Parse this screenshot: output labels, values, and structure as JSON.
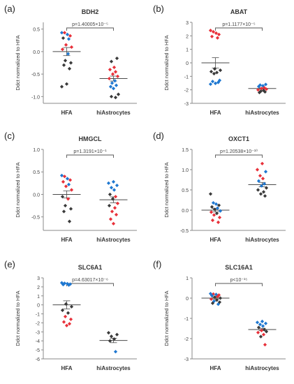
{
  "colors": {
    "red": "#e8313a",
    "blue": "#1f78d1",
    "black": "#3a3a3a",
    "axis": "#8a8a8a",
    "mean_line": "#4a4a4a"
  },
  "chart_data": [
    {
      "type": "scatter",
      "panel_label": "(a)",
      "title": "BDH2",
      "ylabel": "Ddct normalized to HFA",
      "categories": [
        "HFA",
        "hiAstrocytes"
      ],
      "ylim": [
        -1.15,
        0.65
      ],
      "yticks": [
        -1.0,
        -0.5,
        0.0,
        0.5
      ],
      "ytick_labels": [
        "-1.0",
        "-0.5",
        "0.0",
        "0.5"
      ],
      "pvalue": "p=1.40005×10⁻⁵",
      "means": [
        0.0,
        -0.6
      ],
      "sems": [
        0.09,
        0.055
      ],
      "points": [
        {
          "group": 0,
          "color": "blue",
          "y": 0.42
        },
        {
          "group": 0,
          "color": "red",
          "y": 0.42
        },
        {
          "group": 0,
          "color": "blue",
          "y": 0.38
        },
        {
          "group": 0,
          "color": "red",
          "y": 0.35
        },
        {
          "group": 0,
          "color": "black",
          "y": 0.3
        },
        {
          "group": 0,
          "color": "blue",
          "y": 0.28
        },
        {
          "group": 0,
          "color": "red",
          "y": 0.15
        },
        {
          "group": 0,
          "color": "red",
          "y": 0.1
        },
        {
          "group": 0,
          "color": "red",
          "y": 0.05
        },
        {
          "group": 0,
          "color": "blue",
          "y": -0.05
        },
        {
          "group": 0,
          "color": "black",
          "y": -0.2
        },
        {
          "group": 0,
          "color": "black",
          "y": -0.25
        },
        {
          "group": 0,
          "color": "black",
          "y": -0.3
        },
        {
          "group": 0,
          "color": "black",
          "y": -0.38
        },
        {
          "group": 0,
          "color": "black",
          "y": -0.72
        },
        {
          "group": 0,
          "color": "black",
          "y": -0.78
        },
        {
          "group": 1,
          "color": "black",
          "y": -0.15
        },
        {
          "group": 1,
          "color": "black",
          "y": -0.22
        },
        {
          "group": 1,
          "color": "red",
          "y": -0.35
        },
        {
          "group": 1,
          "color": "red",
          "y": -0.4
        },
        {
          "group": 1,
          "color": "red",
          "y": -0.45
        },
        {
          "group": 1,
          "color": "red",
          "y": -0.5
        },
        {
          "group": 1,
          "color": "red",
          "y": -0.55
        },
        {
          "group": 1,
          "color": "red",
          "y": -0.6
        },
        {
          "group": 1,
          "color": "blue",
          "y": -0.65
        },
        {
          "group": 1,
          "color": "blue",
          "y": -0.7
        },
        {
          "group": 1,
          "color": "blue",
          "y": -0.75
        },
        {
          "group": 1,
          "color": "blue",
          "y": -0.78
        },
        {
          "group": 1,
          "color": "blue",
          "y": -0.82
        },
        {
          "group": 1,
          "color": "black",
          "y": -0.95
        },
        {
          "group": 1,
          "color": "black",
          "y": -1.0
        },
        {
          "group": 1,
          "color": "black",
          "y": -1.02
        }
      ]
    },
    {
      "type": "scatter",
      "panel_label": "(b)",
      "title": "ABAT",
      "ylabel": "Ddct normalized to HFA",
      "categories": [
        "HFA",
        "hiAstrocytes"
      ],
      "ylim": [
        -3,
        3
      ],
      "yticks": [
        -3,
        -2,
        -1,
        0,
        1,
        2,
        3
      ],
      "ytick_labels": [
        "-3",
        "-2",
        "-1",
        "0",
        "1",
        "2",
        "3"
      ],
      "pvalue": "p=1.1177×10⁻⁵",
      "means": [
        0.0,
        -1.9
      ],
      "sems": [
        0.38,
        0.05
      ],
      "points": [
        {
          "group": 0,
          "color": "red",
          "y": 2.4
        },
        {
          "group": 0,
          "color": "red",
          "y": 2.3
        },
        {
          "group": 0,
          "color": "red",
          "y": 2.2
        },
        {
          "group": 0,
          "color": "red",
          "y": 2.1
        },
        {
          "group": 0,
          "color": "red",
          "y": 1.95
        },
        {
          "group": 0,
          "color": "red",
          "y": 1.85
        },
        {
          "group": 0,
          "color": "black",
          "y": -0.45
        },
        {
          "group": 0,
          "color": "black",
          "y": -0.55
        },
        {
          "group": 0,
          "color": "black",
          "y": -0.65
        },
        {
          "group": 0,
          "color": "black",
          "y": -0.72
        },
        {
          "group": 0,
          "color": "black",
          "y": -0.8
        },
        {
          "group": 0,
          "color": "blue",
          "y": -1.3
        },
        {
          "group": 0,
          "color": "blue",
          "y": -1.38
        },
        {
          "group": 0,
          "color": "blue",
          "y": -1.45
        },
        {
          "group": 0,
          "color": "blue",
          "y": -1.52
        },
        {
          "group": 0,
          "color": "blue",
          "y": -1.58
        },
        {
          "group": 1,
          "color": "blue",
          "y": -1.6
        },
        {
          "group": 1,
          "color": "blue",
          "y": -1.65
        },
        {
          "group": 1,
          "color": "blue",
          "y": -1.7
        },
        {
          "group": 1,
          "color": "blue",
          "y": -1.75
        },
        {
          "group": 1,
          "color": "red",
          "y": -1.85
        },
        {
          "group": 1,
          "color": "red",
          "y": -1.9
        },
        {
          "group": 1,
          "color": "red",
          "y": -1.95
        },
        {
          "group": 1,
          "color": "red",
          "y": -2.0
        },
        {
          "group": 1,
          "color": "black",
          "y": -2.05
        },
        {
          "group": 1,
          "color": "black",
          "y": -2.1
        },
        {
          "group": 1,
          "color": "black",
          "y": -2.15
        },
        {
          "group": 1,
          "color": "black",
          "y": -2.2
        }
      ]
    },
    {
      "type": "scatter",
      "panel_label": "(c)",
      "title": "HMGCL",
      "ylabel": "Ddct normalized to HFA",
      "categories": [
        "HFA",
        "hiAstrocytes"
      ],
      "ylim": [
        -0.8,
        1.0
      ],
      "yticks": [
        -0.5,
        0.0,
        0.5,
        1.0
      ],
      "ytick_labels": [
        "-0.5",
        "0.0",
        "0.5",
        "1.0"
      ],
      "pvalue": "p=1.3191×10⁻¹",
      "means": [
        0.0,
        -0.12
      ],
      "sems": [
        0.08,
        0.065
      ],
      "points": [
        {
          "group": 0,
          "color": "blue",
          "y": 0.42
        },
        {
          "group": 0,
          "color": "red",
          "y": 0.4
        },
        {
          "group": 0,
          "color": "blue",
          "y": 0.35
        },
        {
          "group": 0,
          "color": "red",
          "y": 0.32
        },
        {
          "group": 0,
          "color": "red",
          "y": 0.28
        },
        {
          "group": 0,
          "color": "blue",
          "y": 0.22
        },
        {
          "group": 0,
          "color": "red",
          "y": 0.18
        },
        {
          "group": 0,
          "color": "red",
          "y": 0.1
        },
        {
          "group": 0,
          "color": "black",
          "y": -0.05
        },
        {
          "group": 0,
          "color": "red",
          "y": -0.1
        },
        {
          "group": 0,
          "color": "black",
          "y": -0.25
        },
        {
          "group": 0,
          "color": "black",
          "y": -0.32
        },
        {
          "group": 0,
          "color": "black",
          "y": -0.38
        },
        {
          "group": 0,
          "color": "black",
          "y": -0.6
        },
        {
          "group": 1,
          "color": "blue",
          "y": 0.28
        },
        {
          "group": 1,
          "color": "blue",
          "y": 0.25
        },
        {
          "group": 1,
          "color": "blue",
          "y": 0.2
        },
        {
          "group": 1,
          "color": "blue",
          "y": 0.15
        },
        {
          "group": 1,
          "color": "blue",
          "y": 0.1
        },
        {
          "group": 1,
          "color": "black",
          "y": 0.0
        },
        {
          "group": 1,
          "color": "red",
          "y": -0.05
        },
        {
          "group": 1,
          "color": "black",
          "y": -0.1
        },
        {
          "group": 1,
          "color": "red",
          "y": -0.2
        },
        {
          "group": 1,
          "color": "black",
          "y": -0.25
        },
        {
          "group": 1,
          "color": "red",
          "y": -0.3
        },
        {
          "group": 1,
          "color": "red",
          "y": -0.38
        },
        {
          "group": 1,
          "color": "red",
          "y": -0.45
        },
        {
          "group": 1,
          "color": "red",
          "y": -0.55
        },
        {
          "group": 1,
          "color": "red",
          "y": -0.65
        }
      ]
    },
    {
      "type": "scatter",
      "panel_label": "(d)",
      "title": "OXCT1",
      "ylabel": "Ddct normalized to HFA",
      "categories": [
        "HFA",
        "hiAstrocytes"
      ],
      "ylim": [
        -0.5,
        1.5
      ],
      "yticks": [
        -0.5,
        0.0,
        0.5,
        1.0,
        1.5
      ],
      "ytick_labels": [
        "-0.5",
        "0.0",
        "0.5",
        "1.0",
        "1.5"
      ],
      "pvalue": "p=1.20538×10⁻¹⁰",
      "means": [
        0.0,
        0.63
      ],
      "sems": [
        0.045,
        0.055
      ],
      "points": [
        {
          "group": 0,
          "color": "black",
          "y": 0.4
        },
        {
          "group": 0,
          "color": "blue",
          "y": 0.18
        },
        {
          "group": 0,
          "color": "blue",
          "y": 0.15
        },
        {
          "group": 0,
          "color": "black",
          "y": 0.12
        },
        {
          "group": 0,
          "color": "black",
          "y": 0.08
        },
        {
          "group": 0,
          "color": "blue",
          "y": 0.05
        },
        {
          "group": 0,
          "color": "black",
          "y": 0.02
        },
        {
          "group": 0,
          "color": "blue",
          "y": -0.02
        },
        {
          "group": 0,
          "color": "red",
          "y": -0.05
        },
        {
          "group": 0,
          "color": "black",
          "y": -0.08
        },
        {
          "group": 0,
          "color": "red",
          "y": -0.12
        },
        {
          "group": 0,
          "color": "red",
          "y": -0.18
        },
        {
          "group": 0,
          "color": "red",
          "y": -0.25
        },
        {
          "group": 0,
          "color": "red",
          "y": -0.3
        },
        {
          "group": 1,
          "color": "red",
          "y": 1.15
        },
        {
          "group": 1,
          "color": "red",
          "y": 1.0
        },
        {
          "group": 1,
          "color": "blue",
          "y": 0.95
        },
        {
          "group": 1,
          "color": "red",
          "y": 0.85
        },
        {
          "group": 1,
          "color": "red",
          "y": 0.78
        },
        {
          "group": 1,
          "color": "blue",
          "y": 0.72
        },
        {
          "group": 1,
          "color": "blue",
          "y": 0.65
        },
        {
          "group": 1,
          "color": "blue",
          "y": 0.6
        },
        {
          "group": 1,
          "color": "black",
          "y": 0.55
        },
        {
          "group": 1,
          "color": "black",
          "y": 0.5
        },
        {
          "group": 1,
          "color": "black",
          "y": 0.45
        },
        {
          "group": 1,
          "color": "black",
          "y": 0.4
        },
        {
          "group": 1,
          "color": "black",
          "y": 0.35
        }
      ]
    },
    {
      "type": "scatter",
      "panel_label": "(e)",
      "title": "SLC6A1",
      "ylabel": "Ddct normalized to HFA",
      "categories": [
        "HFA",
        "hiAstrocytes"
      ],
      "ylim": [
        -6,
        3
      ],
      "yticks": [
        -6,
        -5,
        -4,
        -3,
        -2,
        -1,
        0,
        1,
        2,
        3
      ],
      "ytick_labels": [
        "-6",
        "-5",
        "-4",
        "-3",
        "-2",
        "-1",
        "0",
        "1",
        "2",
        "3"
      ],
      "pvalue": "p=4.63017×10⁻⁶",
      "means": [
        0.0,
        -3.95
      ],
      "sems": [
        0.45,
        0.25
      ],
      "points": [
        {
          "group": 0,
          "color": "blue",
          "y": 2.45
        },
        {
          "group": 0,
          "color": "blue",
          "y": 2.4
        },
        {
          "group": 0,
          "color": "blue",
          "y": 2.35
        },
        {
          "group": 0,
          "color": "blue",
          "y": 2.3
        },
        {
          "group": 0,
          "color": "blue",
          "y": 2.25
        },
        {
          "group": 0,
          "color": "blue",
          "y": 2.2
        },
        {
          "group": 0,
          "color": "black",
          "y": 0.1
        },
        {
          "group": 0,
          "color": "black",
          "y": -0.2
        },
        {
          "group": 0,
          "color": "black",
          "y": -0.6
        },
        {
          "group": 0,
          "color": "black",
          "y": -0.9
        },
        {
          "group": 0,
          "color": "red",
          "y": -1.3
        },
        {
          "group": 0,
          "color": "red",
          "y": -1.6
        },
        {
          "group": 0,
          "color": "red",
          "y": -1.9
        },
        {
          "group": 0,
          "color": "red",
          "y": -2.1
        },
        {
          "group": 0,
          "color": "red",
          "y": -2.3
        },
        {
          "group": 1,
          "color": "black",
          "y": -3.1
        },
        {
          "group": 1,
          "color": "black",
          "y": -3.3
        },
        {
          "group": 1,
          "color": "black",
          "y": -3.5
        },
        {
          "group": 1,
          "color": "black",
          "y": -3.8
        },
        {
          "group": 1,
          "color": "black",
          "y": -4.0
        },
        {
          "group": 1,
          "color": "blue",
          "y": -5.2
        }
      ]
    },
    {
      "type": "scatter",
      "panel_label": "(f)",
      "title": "SLC16A1",
      "ylabel": "Ddct normalized to HFA",
      "categories": [
        "HFA",
        "hiAstrocytes"
      ],
      "ylim": [
        -3,
        1
      ],
      "yticks": [
        -3,
        -2,
        -1,
        0,
        1
      ],
      "ytick_labels": [
        "-3",
        "-2",
        "-1",
        "0",
        "1"
      ],
      "pvalue": "p<10⁻¹⁵",
      "means": [
        0.0,
        -1.55
      ],
      "sems": [
        0.045,
        0.06
      ],
      "points": [
        {
          "group": 0,
          "color": "blue",
          "y": 0.22
        },
        {
          "group": 0,
          "color": "red",
          "y": 0.2
        },
        {
          "group": 0,
          "color": "blue",
          "y": 0.18
        },
        {
          "group": 0,
          "color": "red",
          "y": 0.15
        },
        {
          "group": 0,
          "color": "blue",
          "y": 0.12
        },
        {
          "group": 0,
          "color": "red",
          "y": 0.08
        },
        {
          "group": 0,
          "color": "black",
          "y": 0.05
        },
        {
          "group": 0,
          "color": "black",
          "y": 0.0
        },
        {
          "group": 0,
          "color": "red",
          "y": -0.05
        },
        {
          "group": 0,
          "color": "black",
          "y": -0.1
        },
        {
          "group": 0,
          "color": "blue",
          "y": -0.15
        },
        {
          "group": 0,
          "color": "black",
          "y": -0.2
        },
        {
          "group": 0,
          "color": "black",
          "y": -0.25
        },
        {
          "group": 0,
          "color": "blue",
          "y": -0.3
        },
        {
          "group": 1,
          "color": "blue",
          "y": -1.15
        },
        {
          "group": 1,
          "color": "blue",
          "y": -1.2
        },
        {
          "group": 1,
          "color": "blue",
          "y": -1.25
        },
        {
          "group": 1,
          "color": "blue",
          "y": -1.3
        },
        {
          "group": 1,
          "color": "blue",
          "y": -1.38
        },
        {
          "group": 1,
          "color": "black",
          "y": -1.45
        },
        {
          "group": 1,
          "color": "black",
          "y": -1.55
        },
        {
          "group": 1,
          "color": "red",
          "y": -1.6
        },
        {
          "group": 1,
          "color": "black",
          "y": -1.65
        },
        {
          "group": 1,
          "color": "red",
          "y": -1.7
        },
        {
          "group": 1,
          "color": "red",
          "y": -1.8
        },
        {
          "group": 1,
          "color": "black",
          "y": -1.9
        },
        {
          "group": 1,
          "color": "red",
          "y": -2.3
        }
      ]
    }
  ]
}
